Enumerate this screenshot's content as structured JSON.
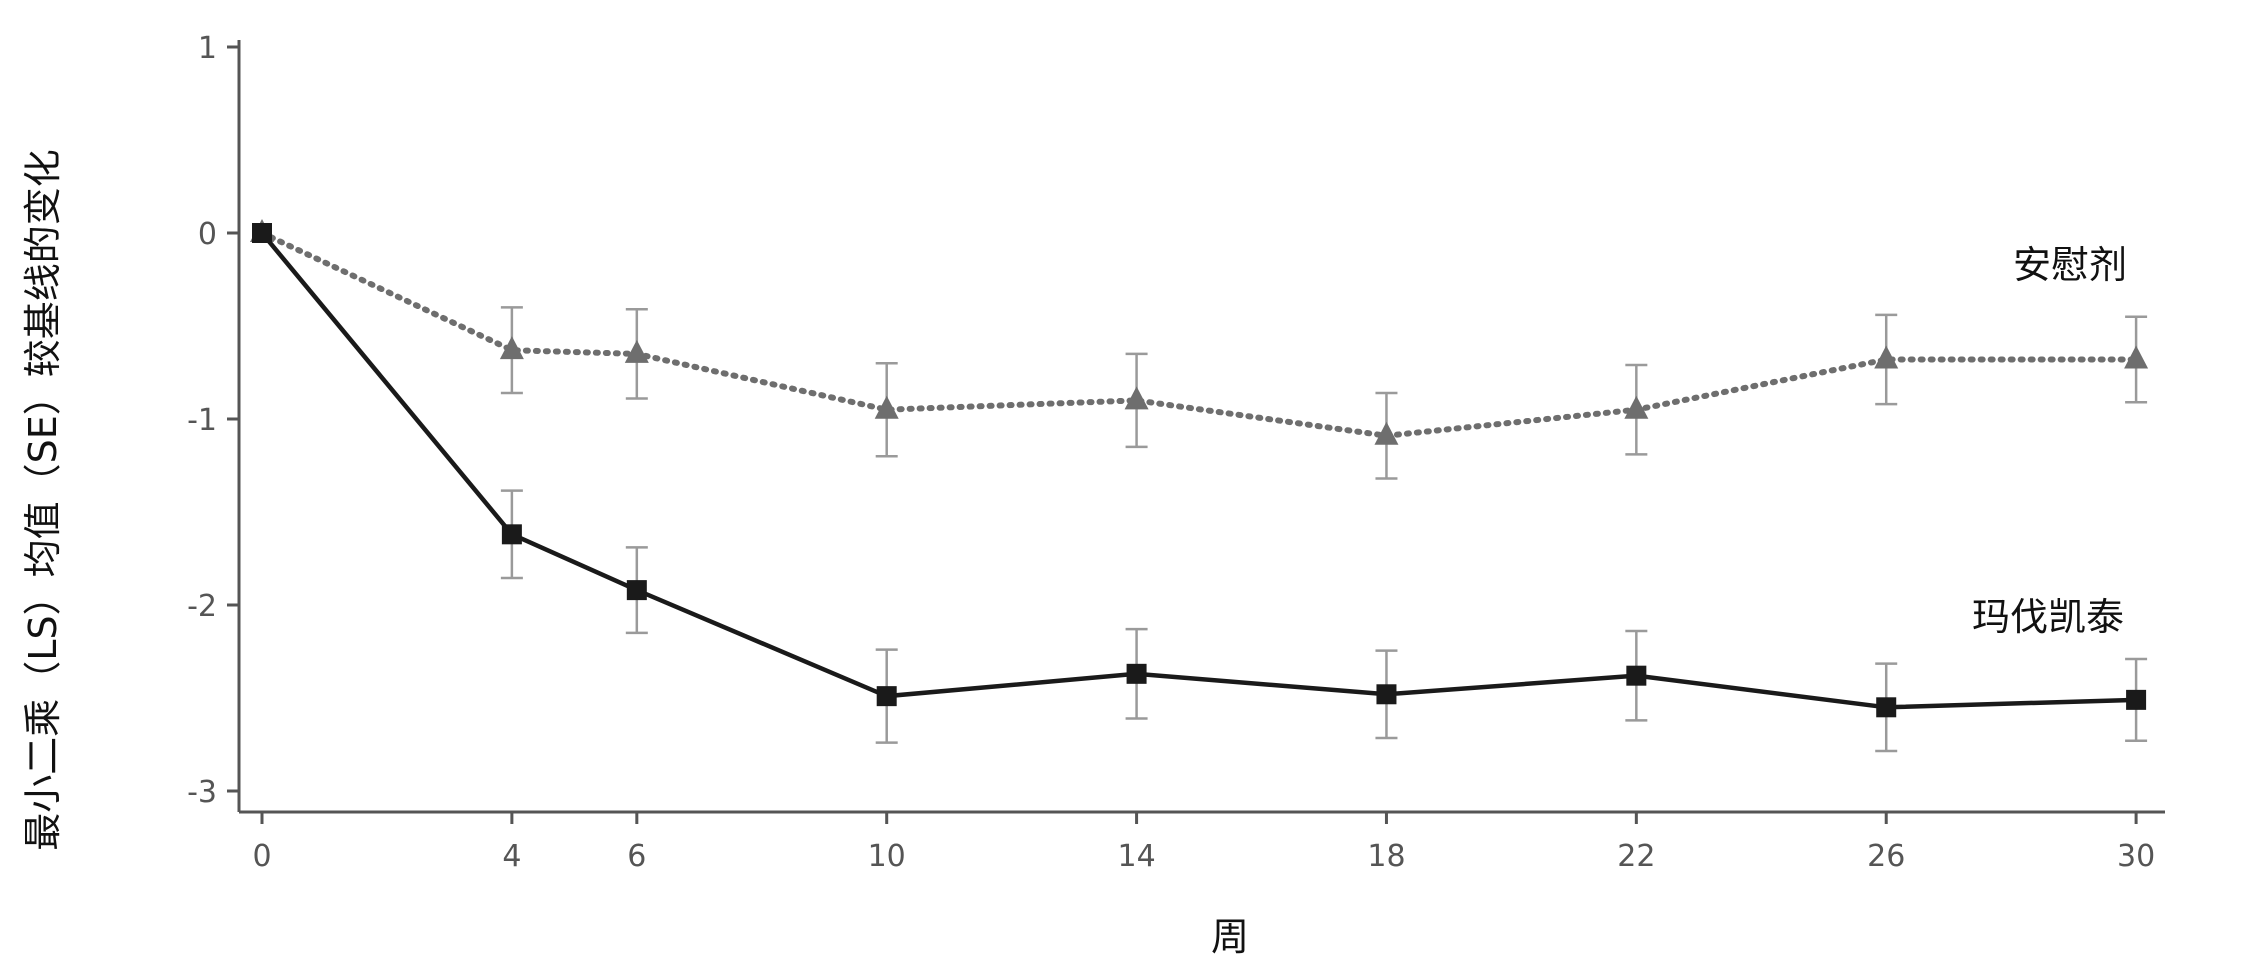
{
  "chart_data": {
    "type": "line",
    "xlabel": "周",
    "ylabel": "最小二乘（LS）均值（SE）较基线的变化",
    "x": [
      0,
      4,
      6,
      10,
      14,
      18,
      22,
      26,
      30
    ],
    "xticks": [
      "0",
      "4",
      "6",
      "10",
      "14",
      "18",
      "22",
      "26",
      "30"
    ],
    "yticks": [
      "1",
      "0",
      "-1",
      "-2",
      "-3"
    ],
    "ylim": [
      -3.1,
      1
    ],
    "xlim": [
      -0.5,
      31
    ],
    "grid": false,
    "series": [
      {
        "name": "安慰剂",
        "marker": "triangle",
        "line": "dotted",
        "color": "#6e6e6e",
        "values": [
          0,
          -0.63,
          -0.65,
          -0.95,
          -0.9,
          -1.09,
          -0.95,
          -0.68,
          -0.68
        ],
        "se": [
          0,
          0.23,
          0.24,
          0.25,
          0.25,
          0.23,
          0.24,
          0.24,
          0.23
        ]
      },
      {
        "name": "玛伐凯泰",
        "marker": "square",
        "line": "solid",
        "color": "#1a1a1a",
        "values": [
          0,
          -1.62,
          -1.92,
          -2.49,
          -2.37,
          -2.48,
          -2.38,
          -2.55,
          -2.51
        ],
        "se": [
          0,
          0.235,
          0.23,
          0.25,
          0.24,
          0.235,
          0.24,
          0.235,
          0.22
        ]
      }
    ]
  }
}
